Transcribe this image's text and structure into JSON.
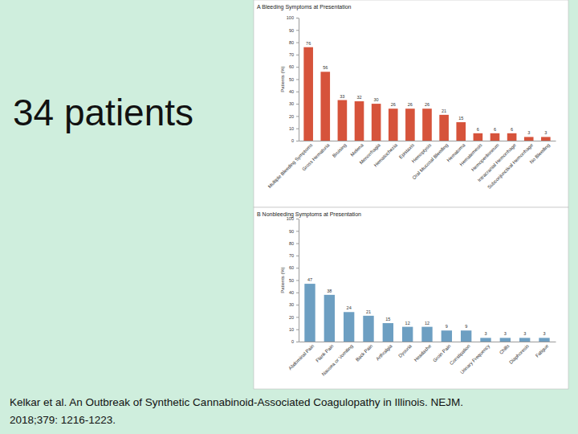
{
  "slide": {
    "heading": "34 patients",
    "citation": [
      "Kelkar et al. An Outbreak of Synthetic Cannabinoid-Associated Coagulopathy in Illinois. NEJM.",
      "2018;379: 1216-1223."
    ]
  },
  "chart_data": [
    {
      "type": "bar",
      "title": "A Bleeding Symptoms at Presentation",
      "ylabel": "Patients (%)",
      "categories": [
        "Multiple Bleeding Symptoms",
        "Gross Hematuria",
        "Bruising",
        "Melena",
        "Menorrhagia",
        "Hematochezia",
        "Epistaxis",
        "Hemoptysis",
        "Oral Mucosal Bleeding",
        "Hematoma",
        "Hematemesis",
        "Hemoperitoneum",
        "Intracranial Hemorrhage",
        "Subconjunctival Hemorrhage",
        "No Bleeding"
      ],
      "values": [
        76,
        56,
        33,
        32,
        30,
        26,
        26,
        26,
        21,
        15,
        6,
        6,
        6,
        3,
        3
      ],
      "color": "#d6533b",
      "ylim": [
        0,
        100
      ],
      "yticks": [
        0,
        10,
        20,
        30,
        40,
        50,
        60,
        70,
        80,
        90,
        100
      ],
      "grid": false,
      "data_labels": true
    },
    {
      "type": "bar",
      "title": "B Nonbleeding Symptoms at Presentation",
      "ylabel": "Patients (%)",
      "categories": [
        "Abdominal Pain",
        "Flank Pain",
        "Nausea or Vomiting",
        "Back Pain",
        "Arthralgia",
        "Dysuria",
        "Headache",
        "Groin Pain",
        "Constipation",
        "Urinary Frequency",
        "Chills",
        "Diaphoresis",
        "Fatigue"
      ],
      "values": [
        47,
        38,
        24,
        21,
        15,
        12,
        12,
        9,
        9,
        3,
        3,
        3,
        3
      ],
      "color": "#6d9fc2",
      "ylim": [
        0,
        100
      ],
      "yticks": [
        0,
        10,
        20,
        30,
        40,
        50,
        60,
        70,
        80,
        90,
        100
      ],
      "grid": false,
      "data_labels": true
    }
  ]
}
